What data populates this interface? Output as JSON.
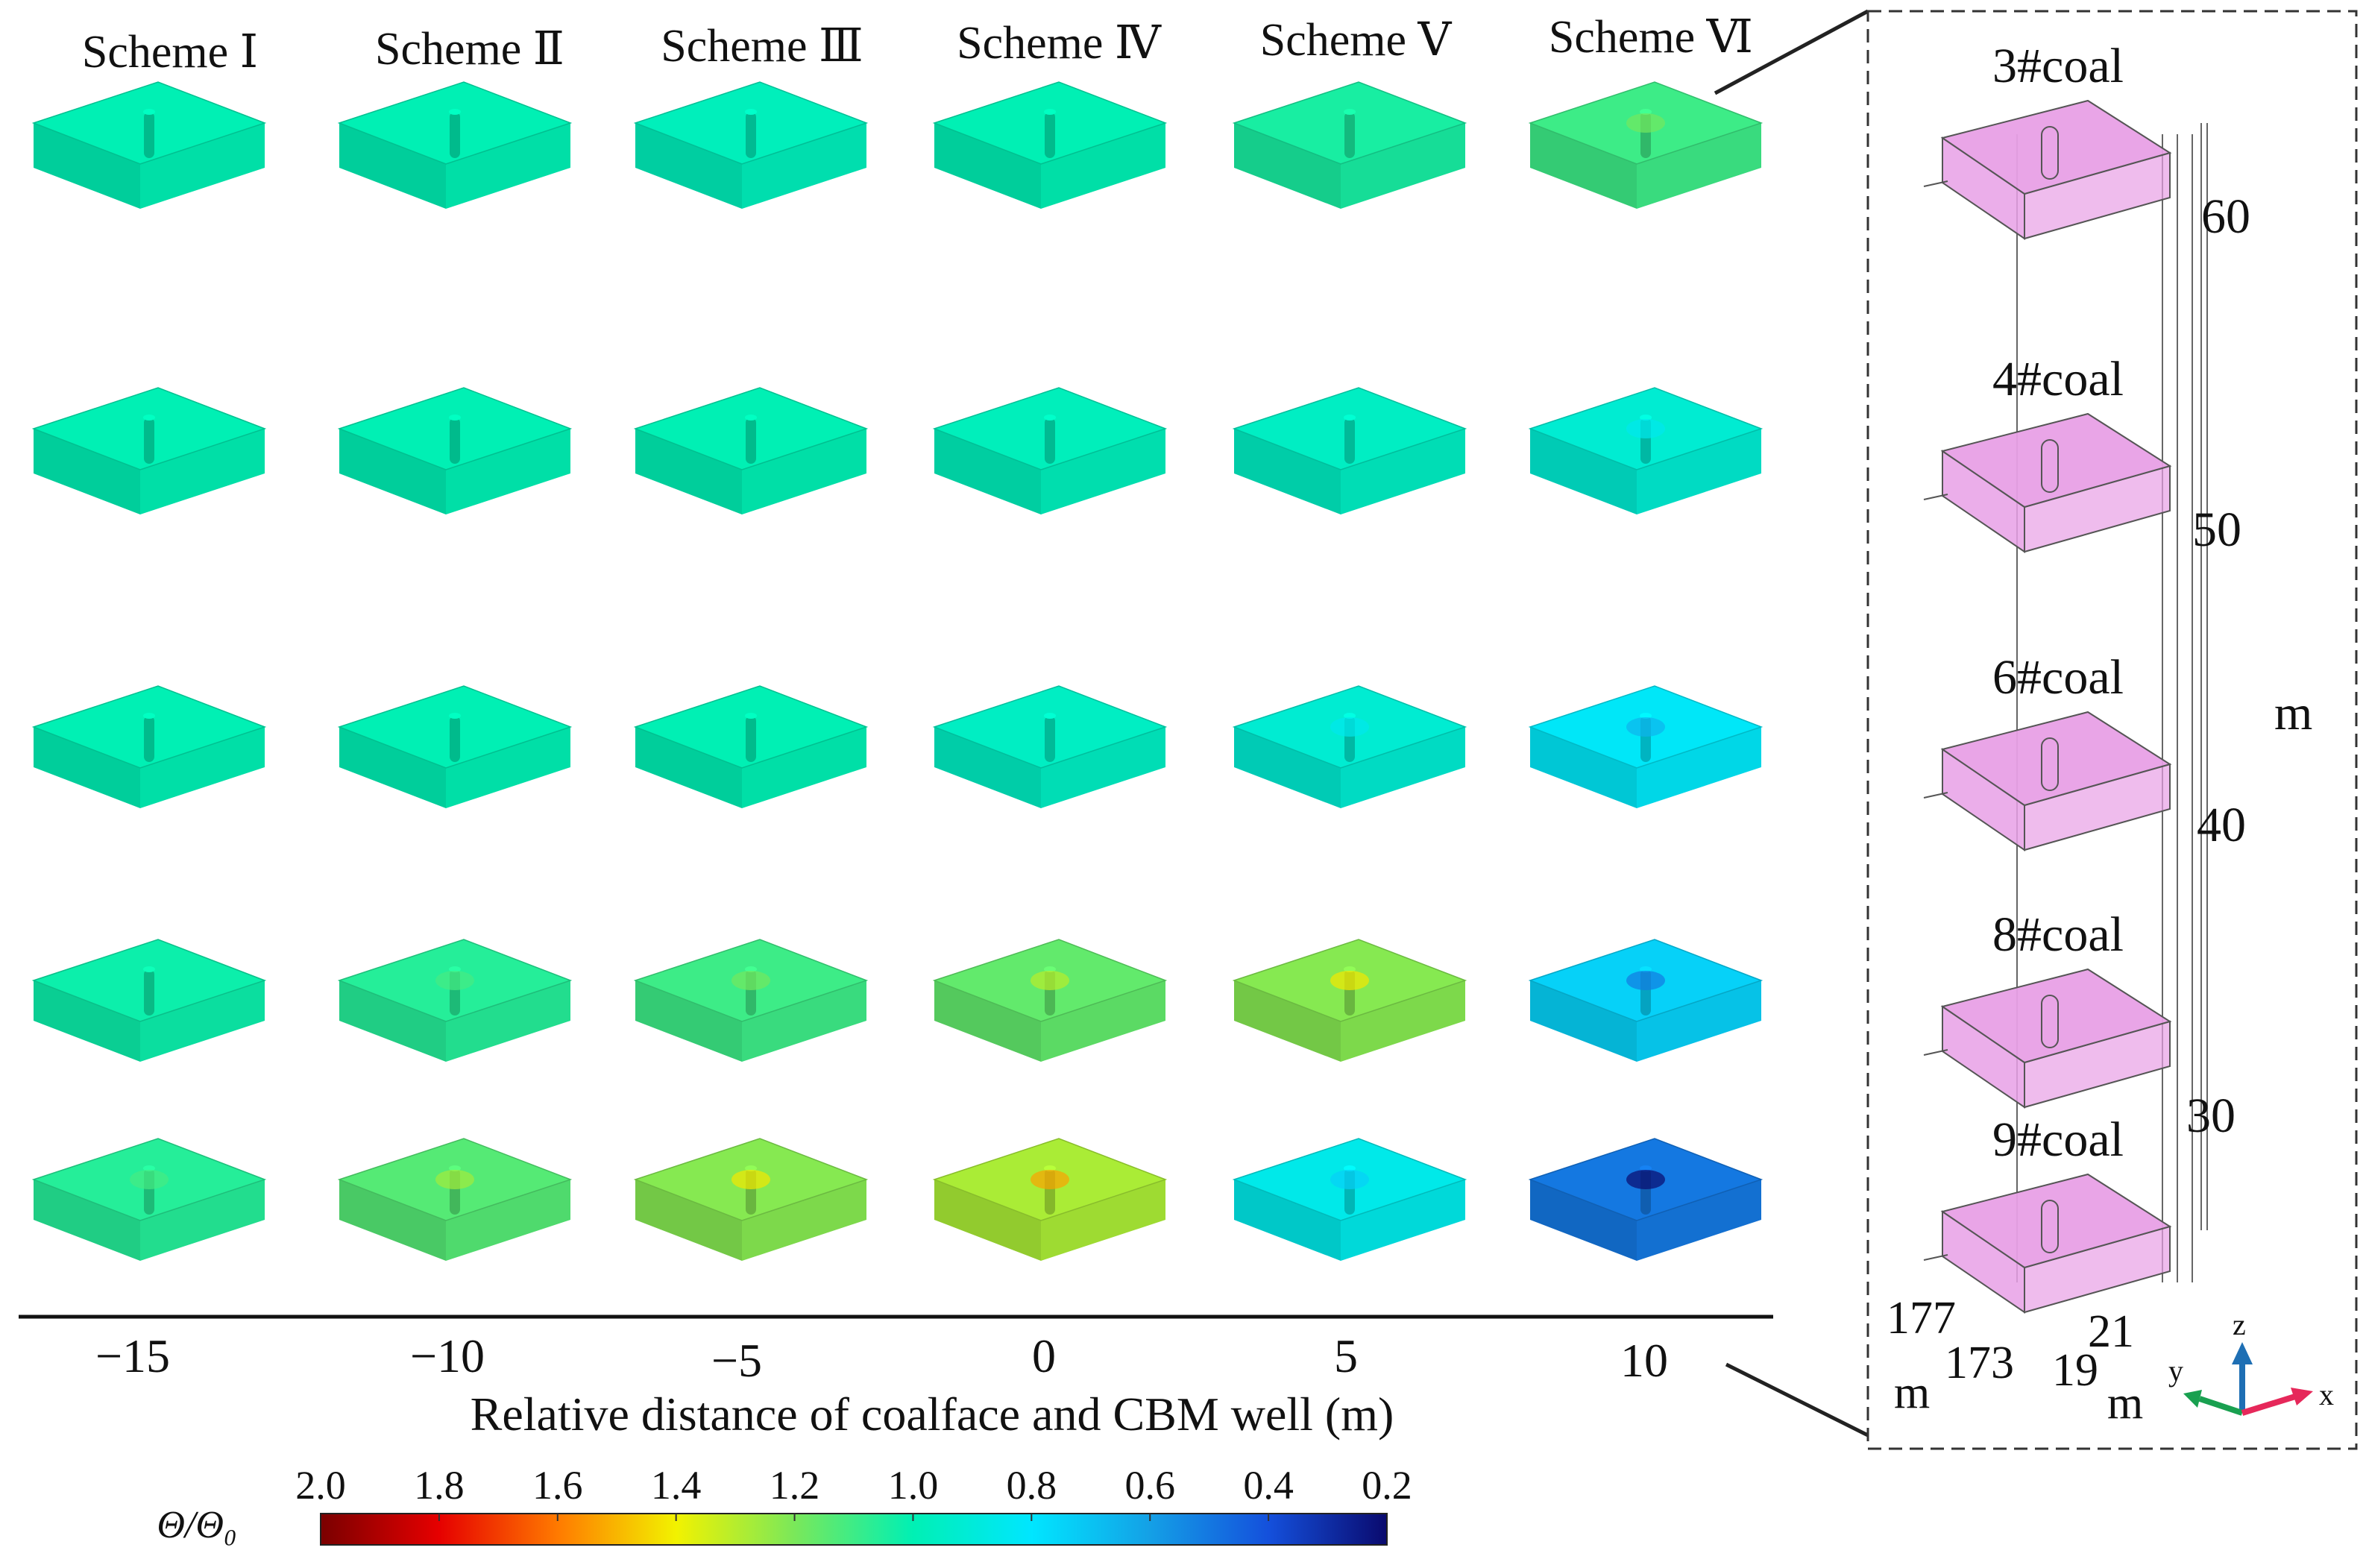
{
  "schemes": [
    "Scheme Ⅰ",
    "Scheme Ⅱ",
    "Scheme Ⅲ",
    "Scheme Ⅳ",
    "Scheme Ⅴ",
    "Scheme Ⅵ"
  ],
  "x_ticks": [
    "−15",
    "−10",
    "−5",
    "0",
    "5",
    "10"
  ],
  "x_axis_label": "Relative distance of coalface and CBM well (m)",
  "colorbar": {
    "label": "Θ/Θ₀",
    "ticks": [
      "2.0",
      "1.8",
      "1.6",
      "1.4",
      "1.2",
      "1.0",
      "0.8",
      "0.6",
      "0.4",
      "0.2"
    ],
    "min": 0.2,
    "max": 2.0,
    "colors": [
      "#7a0000",
      "#e60000",
      "#ff7a00",
      "#f2f200",
      "#7ae85a",
      "#00f0b4",
      "#00e6ff",
      "#14a0e6",
      "#1450dc",
      "#0a0a6e"
    ]
  },
  "block_field": [
    [
      1.0,
      1.0,
      0.98,
      1.0,
      1.04,
      1.1
    ],
    [
      1.0,
      1.0,
      1.0,
      0.98,
      0.96,
      0.92
    ],
    [
      1.0,
      1.0,
      1.0,
      0.96,
      0.92,
      0.82
    ],
    [
      1.02,
      1.06,
      1.1,
      1.16,
      1.22,
      0.74
    ],
    [
      1.06,
      1.14,
      1.22,
      1.28,
      0.86,
      0.5
    ]
  ],
  "model": {
    "seams": [
      "3#coal",
      "4#coal",
      "6#coal",
      "8#coal",
      "9#coal"
    ],
    "z_ticks": [
      "60",
      "50",
      "40",
      "30"
    ],
    "z_unit": "m",
    "y_ticks": [
      "177",
      "173"
    ],
    "y_unit": "m",
    "x_ticks": [
      "21",
      "19"
    ],
    "x_unit": "m",
    "triad": {
      "z": "z",
      "y": "y",
      "x": "x"
    },
    "seam_fill": "#e8a0e6",
    "triad_colors": {
      "z": "#1e6fb4",
      "y": "#19a050",
      "x": "#e6285a"
    }
  }
}
